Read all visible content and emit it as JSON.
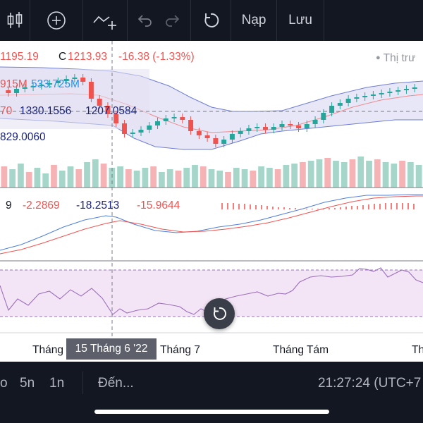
{
  "toolbar": {
    "reload_label": "Nạp",
    "save_label": "Lưu"
  },
  "ohlc": {
    "low_partial": "1195.19",
    "close_label": "C",
    "close_value": "1213.93",
    "change": "-16.38 (-1.33%)",
    "market_status": "Thị trư"
  },
  "volume_row": {
    "value1_partial": "915M",
    "value2": "533.725M"
  },
  "bollinger_row": {
    "value1_partial": "70",
    "value2": "1330.1556",
    "value3": "1207.0584",
    "value4_partial": "829.0060"
  },
  "macd_row": {
    "period_partial": "9",
    "histogram": "-2.2869",
    "macd": "-18.2513",
    "signal": "-15.9644"
  },
  "x_axis": {
    "label_june_partial": "Tháng",
    "crosshair_date": "15 Tháng 6 '22",
    "label_july": "Tháng 7",
    "label_august": "Tháng Tám",
    "label_sept_partial": "Th"
  },
  "bottom": {
    "interval_partial": "o",
    "interval_5n": "5n",
    "interval_1n": "1n",
    "goto_label": "Đến...",
    "clock": "21:27:24 (UTC+7"
  },
  "colors": {
    "up": "#26a69a",
    "down": "#ef5350",
    "up_volume": "#a5d6c9",
    "down_volume": "#f5b3b5",
    "band_fill": "#e5e4f6",
    "band_line": "#6e7cd6",
    "rsi_fill": "#f3e5f5",
    "rsi_line": "#9c6fbd",
    "macd_blue": "#4f7fd8",
    "macd_red": "#ef5350"
  }
}
